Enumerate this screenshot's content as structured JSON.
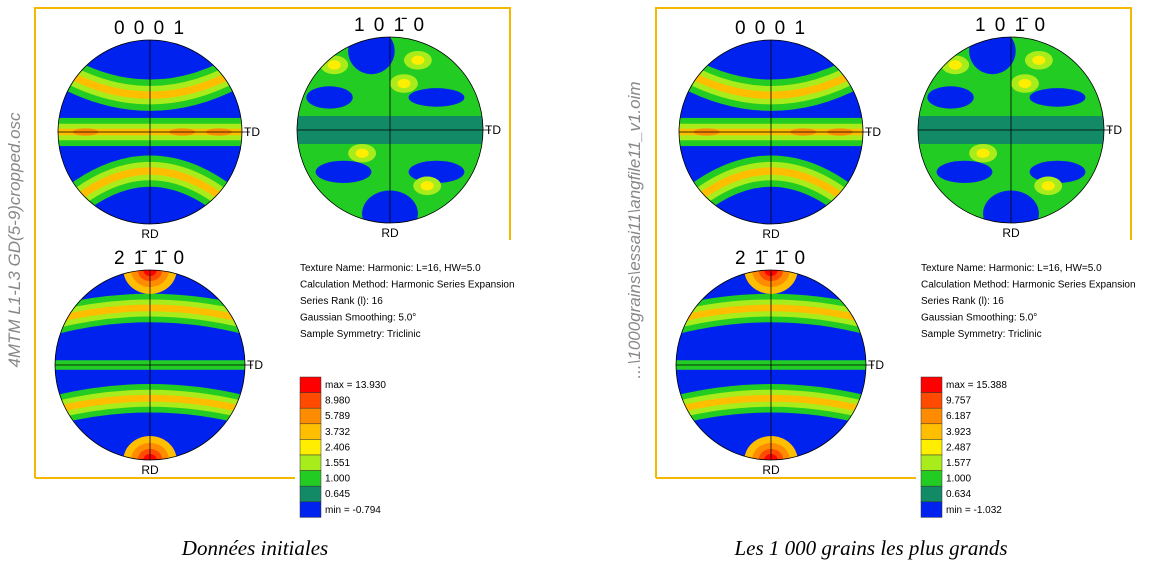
{
  "panels": [
    {
      "side_label": "4MTM L1-L3 GD(5-9)cropped.osc",
      "figures": [
        {
          "label": "0 0 0 1",
          "td": "TD",
          "rd": "RD"
        },
        {
          "label": "1 0 1̄ 0",
          "td": "TD",
          "rd": "RD"
        },
        {
          "label": "2 1̄ 1̄ 0",
          "td": "TD",
          "rd": "RD"
        }
      ],
      "info": [
        "Texture Name: Harmonic: L=16, HW=5.0",
        "Calculation Method: Harmonic Series Expansion",
        "Series Rank (l): 16",
        "Gaussian Smoothing: 5.0°",
        "Sample Symmetry: Triclinic"
      ],
      "legend": [
        {
          "color": "#ff0000",
          "label": "max = 13.930"
        },
        {
          "color": "#ff4a00",
          "label": "8.980"
        },
        {
          "color": "#ff8c00",
          "label": "5.789"
        },
        {
          "color": "#ffbf00",
          "label": "3.732"
        },
        {
          "color": "#ffee00",
          "label": "2.406"
        },
        {
          "color": "#a8ec1c",
          "label": "1.551"
        },
        {
          "color": "#22cc22",
          "label": "1.000"
        },
        {
          "color": "#128a66",
          "label": "0.645"
        },
        {
          "color": "#0022ee",
          "label": "min = -0.794"
        }
      ],
      "caption": "Données initiales"
    },
    {
      "side_label": "...\\1000grains\\essai11\\angfile11_v1.oim",
      "figures": [
        {
          "label": "0 0 0 1",
          "td": "TD",
          "rd": "RD"
        },
        {
          "label": "1 0 1̄ 0",
          "td": "TD",
          "rd": "RD"
        },
        {
          "label": "2 1̄ 1̄ 0",
          "td": "TD",
          "rd": "RD"
        }
      ],
      "info": [
        "Texture Name: Harmonic: L=16, HW=5.0",
        "Calculation Method: Harmonic Series Expansion",
        "Series Rank (l): 16",
        "Gaussian Smoothing: 5.0°",
        "Sample Symmetry: Triclinic"
      ],
      "legend": [
        {
          "color": "#ff0000",
          "label": "max = 15.388"
        },
        {
          "color": "#ff4a00",
          "label": "9.757"
        },
        {
          "color": "#ff8c00",
          "label": "6.187"
        },
        {
          "color": "#ffbf00",
          "label": "3.923"
        },
        {
          "color": "#ffee00",
          "label": "2.487"
        },
        {
          "color": "#a8ec1c",
          "label": "1.577"
        },
        {
          "color": "#22cc22",
          "label": "1.000"
        },
        {
          "color": "#128a66",
          "label": "0.634"
        },
        {
          "color": "#0022ee",
          "label": "min = -1.032"
        }
      ],
      "caption": "Les 1 000 grains les plus grands"
    }
  ]
}
